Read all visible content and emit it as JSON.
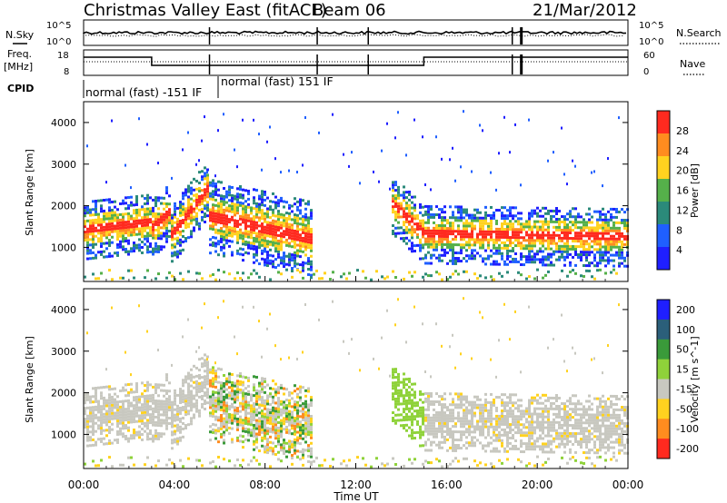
{
  "header": {
    "title": "Christmas Valley East (fitACF)",
    "beam": "Beam 06",
    "date": "21/Mar/2012"
  },
  "noise_panel": {
    "left_label": "N.Sky",
    "right_label": "N.Search",
    "left_ticks": [
      "10^5",
      "10^0"
    ],
    "right_ticks": [
      "10^5",
      "10^0"
    ]
  },
  "freq_panel": {
    "left_label_1": "Freq.",
    "left_label_2": "[MHz]",
    "right_label": "Nave",
    "left_ticks": [
      "18",
      "8"
    ],
    "right_ticks": [
      "60",
      "0"
    ]
  },
  "cpid": {
    "label": "CPID",
    "segments": [
      "normal (fast) -151 IF",
      "normal (fast) 151 IF"
    ]
  },
  "chart_data": [
    {
      "type": "heatmap",
      "name": "Power",
      "ylabel": "Slant Range [km]",
      "ylim": [
        180,
        4500
      ],
      "yticks": [
        1000,
        2000,
        3000,
        4000
      ],
      "colorbar_label": "Power [dB]",
      "colorbar_ticks": [
        "4",
        "8",
        "12",
        "16",
        "20",
        "24",
        "28"
      ],
      "colors": [
        "#1f1fff",
        "#1f5fff",
        "#2b8a7a",
        "#55b04a",
        "#ffd21f",
        "#ff8c1f",
        "#ff2a1f"
      ]
    },
    {
      "type": "heatmap",
      "name": "Velocity",
      "ylabel": "Slant Range [km]",
      "ylim": [
        180,
        4500
      ],
      "yticks": [
        1000,
        2000,
        3000,
        4000
      ],
      "colorbar_label": "Velocity [m s^-1]",
      "colorbar_ticks": [
        "200",
        "100",
        "50",
        "15",
        "-15",
        "-50",
        "-100",
        "-200"
      ],
      "colors": [
        "#1f1fff",
        "#2b5f7a",
        "#3a9a3a",
        "#8fd23a",
        "#c8c8c0",
        "#ffd21f",
        "#ff8c1f",
        "#ff2a1f"
      ]
    }
  ],
  "time_axis": {
    "ticks": [
      "00:00",
      "04:00",
      "08:00",
      "12:00",
      "16:00",
      "20:00",
      "00:00"
    ],
    "label": "Time UT"
  }
}
